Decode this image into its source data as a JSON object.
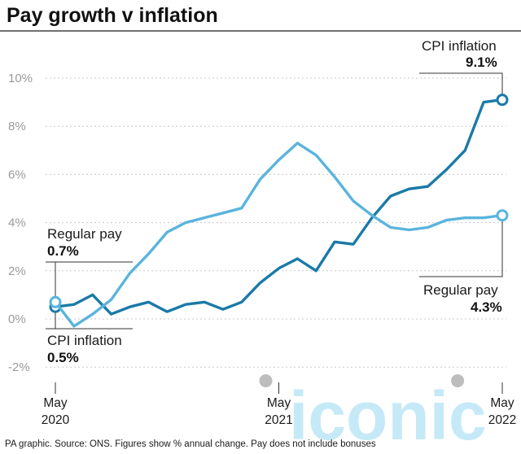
{
  "chart_data": {
    "type": "line",
    "title": "Pay growth v inflation",
    "ylim": [
      -2,
      10
    ],
    "y_ticks": [
      "-2%",
      "0%",
      "2%",
      "4%",
      "6%",
      "8%",
      "10%"
    ],
    "y_tick_values": [
      -2,
      0,
      2,
      4,
      6,
      8,
      10
    ],
    "x_ticks": [
      {
        "line1": "May",
        "line2": "2020",
        "index": 0
      },
      {
        "line1": "May",
        "line2": "2021",
        "index": 12
      },
      {
        "line1": "May",
        "line2": "2022",
        "index": 24
      }
    ],
    "grid": true,
    "series": [
      {
        "name": "Regular pay",
        "color": "#5ab4dc",
        "values": [
          0.7,
          -0.3,
          0.2,
          0.8,
          1.9,
          2.7,
          3.6,
          4.0,
          4.2,
          4.4,
          4.6,
          5.8,
          6.6,
          7.3,
          6.8,
          5.9,
          4.9,
          4.3,
          3.8,
          3.7,
          3.8,
          4.1,
          4.2,
          4.2,
          4.3
        ]
      },
      {
        "name": "CPI inflation",
        "color": "#1a7aa8",
        "values": [
          0.5,
          0.6,
          1.0,
          0.2,
          0.5,
          0.7,
          0.3,
          0.6,
          0.7,
          0.4,
          0.7,
          1.5,
          2.1,
          2.5,
          2.0,
          3.2,
          3.1,
          4.2,
          5.1,
          5.4,
          5.5,
          6.2,
          7.0,
          9.0,
          9.1
        ]
      }
    ],
    "annotations": {
      "cpi_end_label": "CPI inflation",
      "cpi_end_value": "9.1%",
      "pay_start_label": "Regular pay",
      "pay_start_value": "0.7%",
      "pay_end_label": "Regular pay",
      "pay_end_value": "4.3%",
      "cpi_start_label": "CPI inflation",
      "cpi_start_value": "0.5%"
    },
    "source": "PA graphic. Source: ONS. Figures show % annual change. Pay does not include bonuses"
  },
  "watermark": "iconic",
  "colors": {
    "grid": "#c8c8c8",
    "axis": "#333333",
    "dot": "#bdbdbd"
  }
}
